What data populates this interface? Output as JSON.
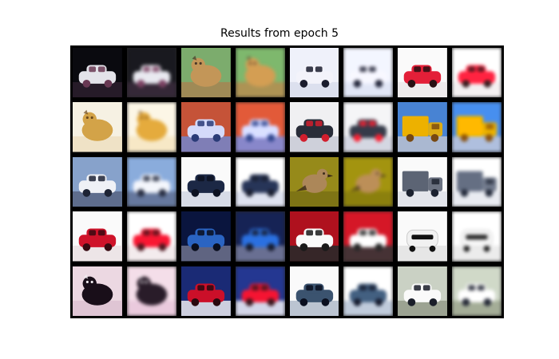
{
  "figure": {
    "title": "Results from epoch 5"
  },
  "grid": {
    "rows": 5,
    "pairs_per_row": 4,
    "pairs": [
      {
        "subject": "white car",
        "bg": "#0b0b10",
        "obj": "#e8e8ee",
        "accent": "#6b3a55",
        "ground": "#2a1e2c",
        "shape": "car"
      },
      {
        "subject": "deer",
        "bg": "#7fb070",
        "obj": "#c79a5a",
        "accent": "#4b3a2a",
        "ground": "#a78a55",
        "shape": "animal"
      },
      {
        "subject": "white car",
        "bg": "#f4f6ff",
        "obj": "#f8f8ff",
        "accent": "#1b1d2e",
        "ground": "#dfe3f2",
        "shape": "car"
      },
      {
        "subject": "red car",
        "bg": "#ffffff",
        "obj": "#e8203a",
        "accent": "#2a1114",
        "ground": "#f2eef0",
        "shape": "car"
      },
      {
        "subject": "frog",
        "bg": "#fbf6e8",
        "obj": "#d8a74a",
        "accent": "#6d4a1c",
        "ground": "#f3e5c6",
        "shape": "animal"
      },
      {
        "subject": "silver car",
        "bg": "#c9553a",
        "obj": "#d9dfff",
        "accent": "#2b3d7a",
        "ground": "#7a86c9",
        "shape": "car"
      },
      {
        "subject": "car on road",
        "bg": "#f5f5f7",
        "obj": "#2a2e3b",
        "accent": "#d61f2e",
        "ground": "#cfd2dc",
        "shape": "car"
      },
      {
        "subject": "truck",
        "bg": "#4a86d8",
        "obj": "#f2b500",
        "accent": "#7a4a12",
        "ground": "#b9c2d6",
        "shape": "truck"
      },
      {
        "subject": "white car",
        "bg": "#8aa6d0",
        "obj": "#f4f6fb",
        "accent": "#1e2436",
        "ground": "#5b6a88",
        "shape": "car"
      },
      {
        "subject": "dark car",
        "bg": "#ffffff",
        "obj": "#1d2947",
        "accent": "#0e1322",
        "ground": "#d9deea",
        "shape": "car"
      },
      {
        "subject": "bird",
        "bg": "#9a8d1b",
        "obj": "#b08a5b",
        "accent": "#3b2a1a",
        "ground": "#7e7416",
        "shape": "bird"
      },
      {
        "subject": "truck",
        "bg": "#ffffff",
        "obj": "#5e6677",
        "accent": "#1c2230",
        "ground": "#e6e8ee",
        "shape": "truck"
      },
      {
        "subject": "red car",
        "bg": "#ffffff",
        "obj": "#d4142b",
        "accent": "#3a0b12",
        "ground": "#f1e8ea",
        "shape": "car"
      },
      {
        "subject": "blue car",
        "bg": "#0b1640",
        "obj": "#2b66c6",
        "accent": "#0a0f1f",
        "ground": "#6a6f8c",
        "shape": "car"
      },
      {
        "subject": "white car",
        "bg": "#b3121f",
        "obj": "#ffffff",
        "accent": "#1b1b1b",
        "ground": "#2a2a2a",
        "shape": "car"
      },
      {
        "subject": "white car rear",
        "bg": "#ffffff",
        "obj": "#f6f6f6",
        "accent": "#121212",
        "ground": "#e9e9e9",
        "shape": "rear"
      },
      {
        "subject": "dog",
        "bg": "#f1dde7",
        "obj": "#1a0f1a",
        "accent": "#f6f2f6",
        "ground": "#e2c7d7",
        "shape": "animal"
      },
      {
        "subject": "red car",
        "bg": "#1b2b78",
        "obj": "#d0102a",
        "accent": "#2a0a10",
        "ground": "#e7e7ef",
        "shape": "car"
      },
      {
        "subject": "dark car",
        "bg": "#ffffff",
        "obj": "#3d5572",
        "accent": "#0b1020",
        "ground": "#b8c2d2",
        "shape": "car"
      },
      {
        "subject": "police car",
        "bg": "#cfd6c8",
        "obj": "#ffffff",
        "accent": "#1b1f2a",
        "ground": "#9aa28f",
        "shape": "car"
      }
    ]
  }
}
